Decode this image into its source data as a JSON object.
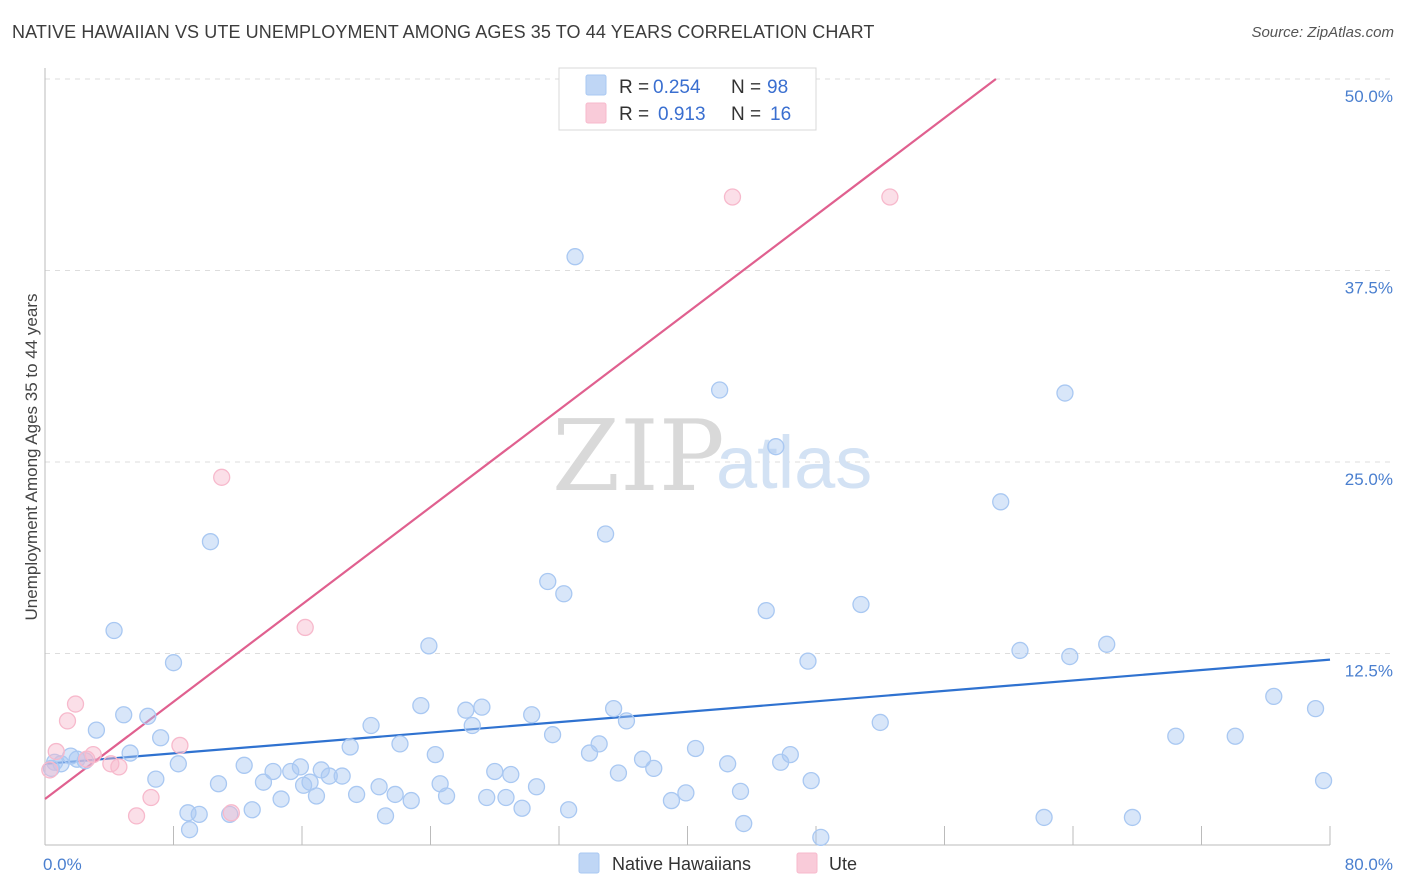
{
  "title": "NATIVE HAWAIIAN VS UTE UNEMPLOYMENT AMONG AGES 35 TO 44 YEARS CORRELATION CHART",
  "source": "Source: ZipAtlas.com",
  "watermark": {
    "zip": "ZIP",
    "atlas": "atlas"
  },
  "legend": {
    "rows": [
      {
        "r_label": "R =",
        "r_value": "0.254",
        "n_label": "N =",
        "n_value": "98",
        "color": "#a9c8f2"
      },
      {
        "r_label": "R =",
        "r_value": "0.913",
        "n_label": "N =",
        "n_value": "16",
        "color": "#f7b9cc"
      }
    ]
  },
  "bottom_legend": [
    {
      "label": "Native Hawaiians",
      "color": "#a9c8f2"
    },
    {
      "label": "Ute",
      "color": "#f7b9cc"
    }
  ],
  "chart_data": {
    "type": "scatter",
    "title": "NATIVE HAWAIIAN VS UTE UNEMPLOYMENT AMONG AGES 35 TO 44 YEARS CORRELATION CHART",
    "xlabel": "",
    "ylabel": "Unemployment Among Ages 35 to 44 years",
    "xlim": [
      0,
      80
    ],
    "ylim": [
      0,
      50
    ],
    "x_tick_labels": [
      "0.0%",
      "80.0%"
    ],
    "y_ticks": [
      12.5,
      25.0,
      37.5,
      50.0
    ],
    "y_tick_labels": [
      "12.5%",
      "25.0%",
      "37.5%",
      "50.0%"
    ],
    "grid": true,
    "series": [
      {
        "name": "Native Hawaiians",
        "color": "#a9c8f2",
        "line_color": "#2f72d0",
        "trend": [
          [
            0,
            5.3
          ],
          [
            80,
            12.1
          ]
        ],
        "points": [
          [
            0.4,
            5.0
          ],
          [
            0.6,
            5.4
          ],
          [
            1.0,
            5.3
          ],
          [
            1.6,
            5.8
          ],
          [
            2.0,
            5.6
          ],
          [
            2.5,
            5.5
          ],
          [
            3.2,
            7.5
          ],
          [
            4.3,
            14.0
          ],
          [
            4.9,
            8.5
          ],
          [
            5.3,
            6.0
          ],
          [
            6.4,
            8.4
          ],
          [
            6.9,
            4.3
          ],
          [
            7.2,
            7.0
          ],
          [
            8.0,
            11.9
          ],
          [
            8.3,
            5.3
          ],
          [
            8.9,
            2.1
          ],
          [
            9.0,
            1.0
          ],
          [
            9.6,
            2.0
          ],
          [
            10.3,
            19.8
          ],
          [
            10.8,
            4.0
          ],
          [
            11.5,
            2.0
          ],
          [
            12.4,
            5.2
          ],
          [
            12.9,
            2.3
          ],
          [
            13.6,
            4.1
          ],
          [
            14.2,
            4.8
          ],
          [
            14.7,
            3.0
          ],
          [
            15.3,
            4.8
          ],
          [
            15.9,
            5.1
          ],
          [
            16.1,
            3.9
          ],
          [
            16.5,
            4.1
          ],
          [
            16.9,
            3.2
          ],
          [
            17.2,
            4.9
          ],
          [
            17.7,
            4.5
          ],
          [
            18.5,
            4.5
          ],
          [
            19.0,
            6.4
          ],
          [
            19.4,
            3.3
          ],
          [
            20.3,
            7.8
          ],
          [
            20.8,
            3.8
          ],
          [
            21.2,
            1.9
          ],
          [
            21.8,
            3.3
          ],
          [
            22.1,
            6.6
          ],
          [
            22.8,
            2.9
          ],
          [
            23.4,
            9.1
          ],
          [
            23.9,
            13.0
          ],
          [
            24.3,
            5.9
          ],
          [
            24.6,
            4.0
          ],
          [
            25.0,
            3.2
          ],
          [
            26.2,
            8.8
          ],
          [
            26.6,
            7.8
          ],
          [
            27.2,
            9.0
          ],
          [
            27.5,
            3.1
          ],
          [
            28.0,
            4.8
          ],
          [
            28.7,
            3.1
          ],
          [
            29.0,
            4.6
          ],
          [
            29.7,
            2.4
          ],
          [
            30.3,
            8.5
          ],
          [
            30.6,
            3.8
          ],
          [
            31.3,
            17.2
          ],
          [
            31.6,
            7.2
          ],
          [
            32.3,
            16.4
          ],
          [
            32.6,
            2.3
          ],
          [
            33.0,
            38.4
          ],
          [
            33.9,
            6.0
          ],
          [
            34.5,
            6.6
          ],
          [
            34.9,
            20.3
          ],
          [
            35.4,
            8.9
          ],
          [
            35.7,
            4.7
          ],
          [
            36.2,
            8.1
          ],
          [
            37.2,
            5.6
          ],
          [
            37.9,
            5.0
          ],
          [
            39.0,
            2.9
          ],
          [
            39.9,
            3.4
          ],
          [
            40.5,
            6.3
          ],
          [
            42.0,
            29.7
          ],
          [
            42.5,
            5.3
          ],
          [
            43.3,
            3.5
          ],
          [
            43.5,
            1.4
          ],
          [
            44.9,
            15.3
          ],
          [
            45.5,
            26.0
          ],
          [
            45.8,
            5.4
          ],
          [
            46.4,
            5.9
          ],
          [
            47.5,
            12.0
          ],
          [
            47.7,
            4.2
          ],
          [
            48.3,
            0.5
          ],
          [
            50.8,
            15.7
          ],
          [
            52.0,
            8.0
          ],
          [
            59.5,
            22.4
          ],
          [
            60.7,
            12.7
          ],
          [
            62.2,
            1.8
          ],
          [
            63.5,
            29.5
          ],
          [
            63.8,
            12.3
          ],
          [
            66.1,
            13.1
          ],
          [
            67.7,
            1.8
          ],
          [
            70.4,
            7.1
          ],
          [
            74.1,
            7.1
          ],
          [
            76.5,
            9.7
          ],
          [
            79.1,
            8.9
          ],
          [
            79.6,
            4.2
          ]
        ]
      },
      {
        "name": "Ute",
        "color": "#f7b9cc",
        "line_color": "#e0608f",
        "trend": [
          [
            0,
            3.0
          ],
          [
            59.2,
            50.0
          ]
        ],
        "points": [
          [
            0.3,
            4.9
          ],
          [
            0.7,
            6.1
          ],
          [
            1.4,
            8.1
          ],
          [
            1.9,
            9.2
          ],
          [
            2.6,
            5.6
          ],
          [
            3.0,
            5.9
          ],
          [
            4.1,
            5.3
          ],
          [
            4.6,
            5.1
          ],
          [
            5.7,
            1.9
          ],
          [
            6.6,
            3.1
          ],
          [
            8.4,
            6.5
          ],
          [
            11.0,
            24.0
          ],
          [
            11.6,
            2.1
          ],
          [
            16.2,
            14.2
          ],
          [
            42.8,
            42.3
          ],
          [
            52.6,
            42.3
          ]
        ]
      }
    ]
  }
}
